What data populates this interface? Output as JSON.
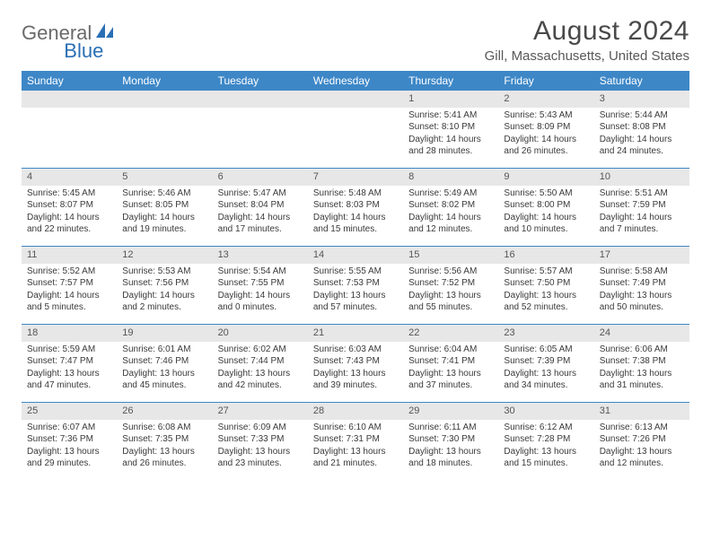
{
  "logo": {
    "part1": "General",
    "part2": "Blue"
  },
  "header": {
    "month_title": "August 2024",
    "location": "Gill, Massachusetts, United States"
  },
  "colors": {
    "header_bg": "#3d87c7",
    "header_text": "#ffffff",
    "daynum_bg": "#e7e7e7",
    "rule": "#3d87c7",
    "logo_gray": "#6a6a6a",
    "logo_blue": "#2a6fb5"
  },
  "weekdays": [
    "Sunday",
    "Monday",
    "Tuesday",
    "Wednesday",
    "Thursday",
    "Friday",
    "Saturday"
  ],
  "weeks": [
    [
      {
        "blank": true
      },
      {
        "blank": true
      },
      {
        "blank": true
      },
      {
        "blank": true
      },
      {
        "n": "1",
        "sunrise": "Sunrise: 5:41 AM",
        "sunset": "Sunset: 8:10 PM",
        "day1": "Daylight: 14 hours",
        "day2": "and 28 minutes."
      },
      {
        "n": "2",
        "sunrise": "Sunrise: 5:43 AM",
        "sunset": "Sunset: 8:09 PM",
        "day1": "Daylight: 14 hours",
        "day2": "and 26 minutes."
      },
      {
        "n": "3",
        "sunrise": "Sunrise: 5:44 AM",
        "sunset": "Sunset: 8:08 PM",
        "day1": "Daylight: 14 hours",
        "day2": "and 24 minutes."
      }
    ],
    [
      {
        "n": "4",
        "sunrise": "Sunrise: 5:45 AM",
        "sunset": "Sunset: 8:07 PM",
        "day1": "Daylight: 14 hours",
        "day2": "and 22 minutes."
      },
      {
        "n": "5",
        "sunrise": "Sunrise: 5:46 AM",
        "sunset": "Sunset: 8:05 PM",
        "day1": "Daylight: 14 hours",
        "day2": "and 19 minutes."
      },
      {
        "n": "6",
        "sunrise": "Sunrise: 5:47 AM",
        "sunset": "Sunset: 8:04 PM",
        "day1": "Daylight: 14 hours",
        "day2": "and 17 minutes."
      },
      {
        "n": "7",
        "sunrise": "Sunrise: 5:48 AM",
        "sunset": "Sunset: 8:03 PM",
        "day1": "Daylight: 14 hours",
        "day2": "and 15 minutes."
      },
      {
        "n": "8",
        "sunrise": "Sunrise: 5:49 AM",
        "sunset": "Sunset: 8:02 PM",
        "day1": "Daylight: 14 hours",
        "day2": "and 12 minutes."
      },
      {
        "n": "9",
        "sunrise": "Sunrise: 5:50 AM",
        "sunset": "Sunset: 8:00 PM",
        "day1": "Daylight: 14 hours",
        "day2": "and 10 minutes."
      },
      {
        "n": "10",
        "sunrise": "Sunrise: 5:51 AM",
        "sunset": "Sunset: 7:59 PM",
        "day1": "Daylight: 14 hours",
        "day2": "and 7 minutes."
      }
    ],
    [
      {
        "n": "11",
        "sunrise": "Sunrise: 5:52 AM",
        "sunset": "Sunset: 7:57 PM",
        "day1": "Daylight: 14 hours",
        "day2": "and 5 minutes."
      },
      {
        "n": "12",
        "sunrise": "Sunrise: 5:53 AM",
        "sunset": "Sunset: 7:56 PM",
        "day1": "Daylight: 14 hours",
        "day2": "and 2 minutes."
      },
      {
        "n": "13",
        "sunrise": "Sunrise: 5:54 AM",
        "sunset": "Sunset: 7:55 PM",
        "day1": "Daylight: 14 hours",
        "day2": "and 0 minutes."
      },
      {
        "n": "14",
        "sunrise": "Sunrise: 5:55 AM",
        "sunset": "Sunset: 7:53 PM",
        "day1": "Daylight: 13 hours",
        "day2": "and 57 minutes."
      },
      {
        "n": "15",
        "sunrise": "Sunrise: 5:56 AM",
        "sunset": "Sunset: 7:52 PM",
        "day1": "Daylight: 13 hours",
        "day2": "and 55 minutes."
      },
      {
        "n": "16",
        "sunrise": "Sunrise: 5:57 AM",
        "sunset": "Sunset: 7:50 PM",
        "day1": "Daylight: 13 hours",
        "day2": "and 52 minutes."
      },
      {
        "n": "17",
        "sunrise": "Sunrise: 5:58 AM",
        "sunset": "Sunset: 7:49 PM",
        "day1": "Daylight: 13 hours",
        "day2": "and 50 minutes."
      }
    ],
    [
      {
        "n": "18",
        "sunrise": "Sunrise: 5:59 AM",
        "sunset": "Sunset: 7:47 PM",
        "day1": "Daylight: 13 hours",
        "day2": "and 47 minutes."
      },
      {
        "n": "19",
        "sunrise": "Sunrise: 6:01 AM",
        "sunset": "Sunset: 7:46 PM",
        "day1": "Daylight: 13 hours",
        "day2": "and 45 minutes."
      },
      {
        "n": "20",
        "sunrise": "Sunrise: 6:02 AM",
        "sunset": "Sunset: 7:44 PM",
        "day1": "Daylight: 13 hours",
        "day2": "and 42 minutes."
      },
      {
        "n": "21",
        "sunrise": "Sunrise: 6:03 AM",
        "sunset": "Sunset: 7:43 PM",
        "day1": "Daylight: 13 hours",
        "day2": "and 39 minutes."
      },
      {
        "n": "22",
        "sunrise": "Sunrise: 6:04 AM",
        "sunset": "Sunset: 7:41 PM",
        "day1": "Daylight: 13 hours",
        "day2": "and 37 minutes."
      },
      {
        "n": "23",
        "sunrise": "Sunrise: 6:05 AM",
        "sunset": "Sunset: 7:39 PM",
        "day1": "Daylight: 13 hours",
        "day2": "and 34 minutes."
      },
      {
        "n": "24",
        "sunrise": "Sunrise: 6:06 AM",
        "sunset": "Sunset: 7:38 PM",
        "day1": "Daylight: 13 hours",
        "day2": "and 31 minutes."
      }
    ],
    [
      {
        "n": "25",
        "sunrise": "Sunrise: 6:07 AM",
        "sunset": "Sunset: 7:36 PM",
        "day1": "Daylight: 13 hours",
        "day2": "and 29 minutes."
      },
      {
        "n": "26",
        "sunrise": "Sunrise: 6:08 AM",
        "sunset": "Sunset: 7:35 PM",
        "day1": "Daylight: 13 hours",
        "day2": "and 26 minutes."
      },
      {
        "n": "27",
        "sunrise": "Sunrise: 6:09 AM",
        "sunset": "Sunset: 7:33 PM",
        "day1": "Daylight: 13 hours",
        "day2": "and 23 minutes."
      },
      {
        "n": "28",
        "sunrise": "Sunrise: 6:10 AM",
        "sunset": "Sunset: 7:31 PM",
        "day1": "Daylight: 13 hours",
        "day2": "and 21 minutes."
      },
      {
        "n": "29",
        "sunrise": "Sunrise: 6:11 AM",
        "sunset": "Sunset: 7:30 PM",
        "day1": "Daylight: 13 hours",
        "day2": "and 18 minutes."
      },
      {
        "n": "30",
        "sunrise": "Sunrise: 6:12 AM",
        "sunset": "Sunset: 7:28 PM",
        "day1": "Daylight: 13 hours",
        "day2": "and 15 minutes."
      },
      {
        "n": "31",
        "sunrise": "Sunrise: 6:13 AM",
        "sunset": "Sunset: 7:26 PM",
        "day1": "Daylight: 13 hours",
        "day2": "and 12 minutes."
      }
    ]
  ]
}
